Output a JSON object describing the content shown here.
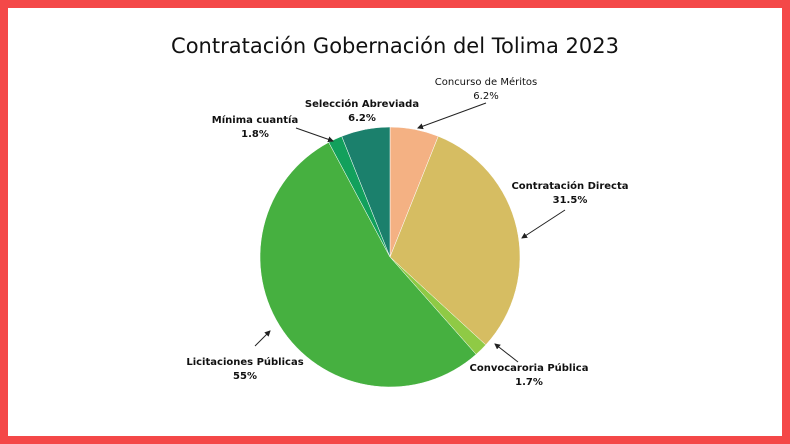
{
  "chart_data": {
    "type": "pie",
    "title": "Contratación Gobernación del Tolima 2023",
    "categories": [
      "Concurso de Méritos",
      "Contratación Directa",
      "Convocaroria Pública",
      "Licitaciones Públicas",
      "Mínima cuantía",
      "Selección Abreviada"
    ],
    "values": [
      6.2,
      31.5,
      1.7,
      55,
      1.8,
      6.2
    ],
    "value_labels": [
      "6.2%",
      "31.5%",
      "1.7%",
      "55%",
      "1.8%",
      "6.2%"
    ],
    "colors": [
      "#f4b183",
      "#d6bd62",
      "#8fca45",
      "#46b040",
      "#12a05c",
      "#1b806c"
    ]
  }
}
